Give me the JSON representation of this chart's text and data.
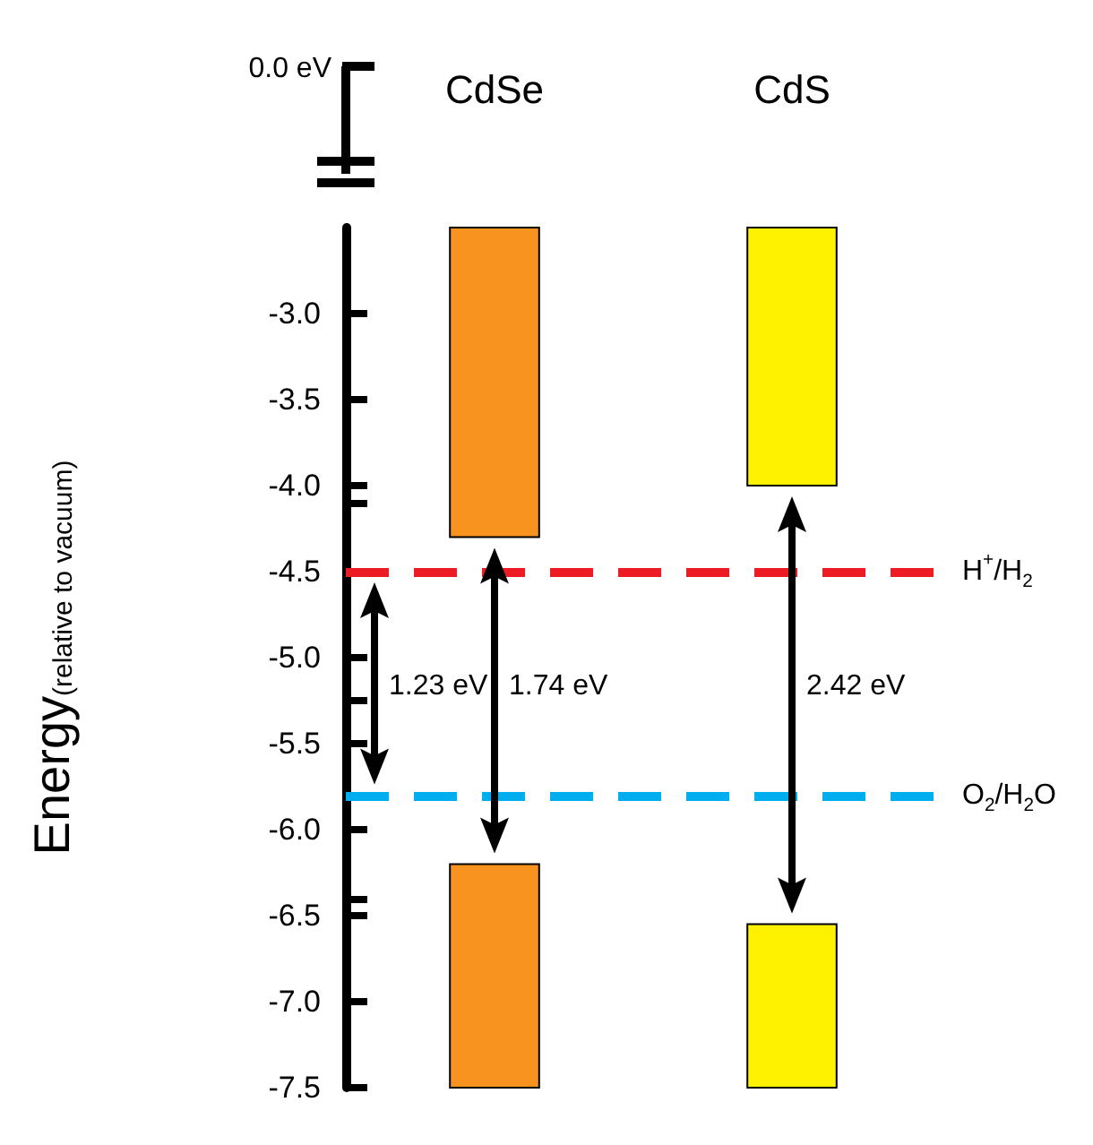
{
  "chart_data": {
    "type": "bar",
    "categories": [
      "CdSe",
      "CdS"
    ],
    "ylabel": "Energy$_{(relative to vacuum)}$",
    "ylim": [
      -7.5,
      -2.5
    ],
    "yticks": [
      {
        "value": -3,
        "label": "-3.0"
      },
      {
        "value": -3.5,
        "label": "-3.5"
      },
      {
        "value": -4,
        "label": "-4.0"
      },
      {
        "value": -4.1,
        "label": null
      },
      {
        "value": -4.5,
        "label": "-4.5"
      },
      {
        "value": -5,
        "label": "-5.0"
      },
      {
        "value": -5.25,
        "label": null
      },
      {
        "value": -5.5,
        "label": "-5.5"
      },
      {
        "value": -6,
        "label": "-6.0"
      },
      {
        "value": -6.4,
        "label": null
      },
      {
        "value": -6.5,
        "label": "-6.5"
      },
      {
        "value": -7,
        "label": "-7.0"
      },
      {
        "value": -7.5,
        "label": "-7.5"
      }
    ],
    "series": [
      {
        "values": [
          1.8,
          1.5
        ],
        "base": [
          -4.3,
          -4.0
        ],
        "colors": [
          "#f7931e",
          "#fff200"
        ]
      },
      {
        "values": [
          1.3,
          0.95
        ],
        "base": [
          -7.5,
          -7.5
        ],
        "colors": [
          "#f7931e",
          "#fff200"
        ]
      }
    ],
    "ref_lines": [
      {
        "axis": "y",
        "value": -4.5,
        "label": "H$^{+}$/H$_{2}$",
        "color": "#ed1c24",
        "line_style": "dashed"
      },
      {
        "axis": "y",
        "value": -5.8,
        "label": "O$_{2}$/H$_{2}$O",
        "color": "#00aeef",
        "line_style": "dashed"
      }
    ],
    "annotations": [
      "0.0 eV",
      "1.23 eV",
      "1.74 eV",
      "2.42 eV"
    ],
    "grid": false
  }
}
